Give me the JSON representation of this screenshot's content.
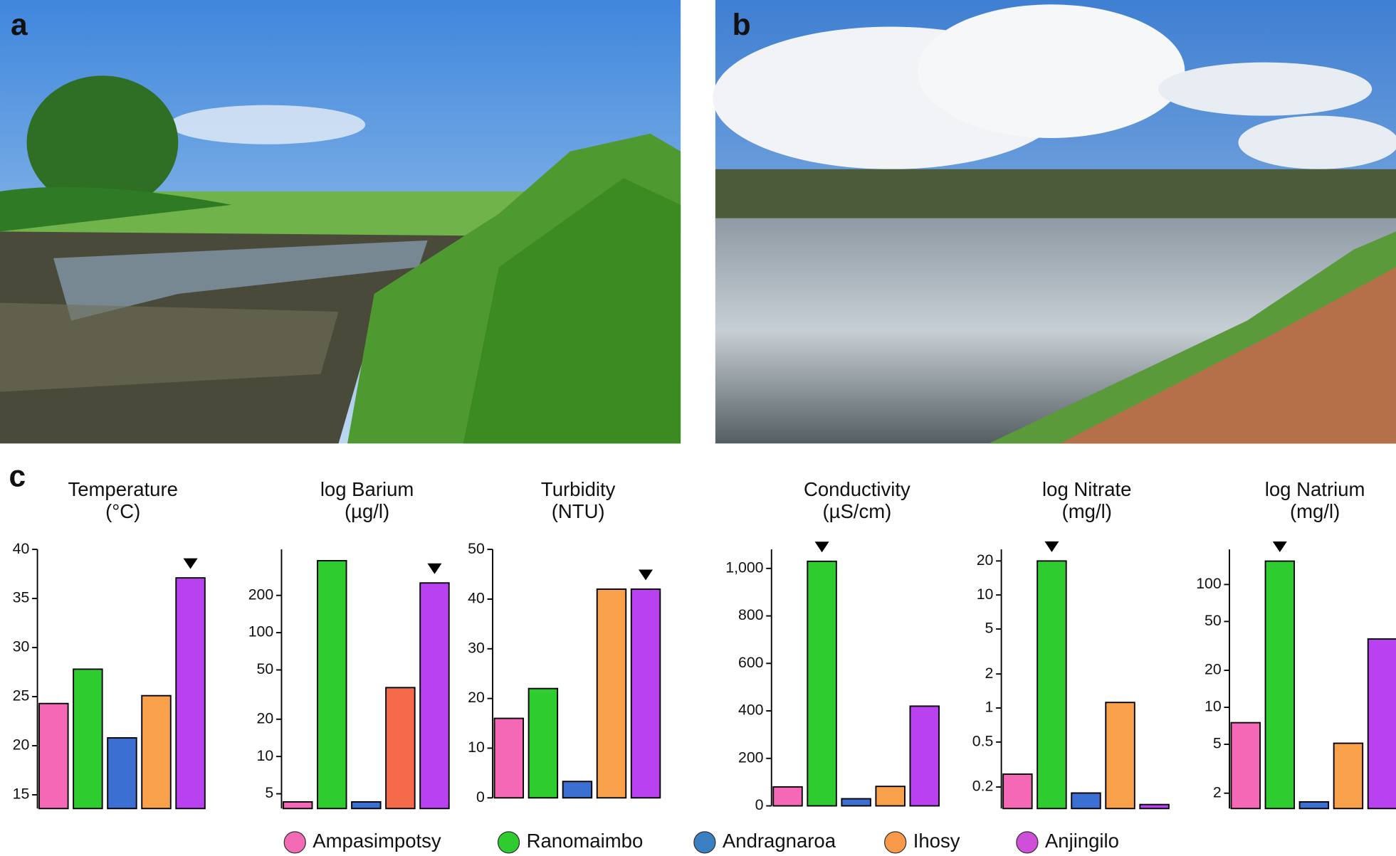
{
  "panel_labels": {
    "a": "a",
    "b": "b",
    "c": "c"
  },
  "legend": {
    "names": [
      "Ampasimpotsy",
      "Ranomaimbo",
      "Andragnaroa",
      "Ihosy",
      "Anjingilo"
    ],
    "colors": [
      "#f46ab4",
      "#2ecc2e",
      "#3a7fc2",
      "#f99a4a",
      "#cf4fd8"
    ]
  },
  "chart_data": [
    {
      "type": "bar",
      "title": "Temperature",
      "unit": "(°C)",
      "log": false,
      "values": [
        24.3,
        27.8,
        20.8,
        25.1,
        37.1
      ],
      "colors": [
        "#f468b6",
        "#2ecc2e",
        "#3b6fd1",
        "#f9a04a",
        "#b941f0"
      ],
      "highlight": 4,
      "ylim": [
        13.6,
        40
      ],
      "yticks": [
        15,
        20,
        25,
        30,
        35,
        40
      ]
    },
    {
      "type": "bar",
      "title": "log Barium",
      "unit": "(µg/l)",
      "log": true,
      "values": [
        4.3,
        381,
        4.3,
        36,
        252
      ],
      "colors": [
        "#f468b6",
        "#2ecc2e",
        "#3b6fd1",
        "#f56a4a",
        "#b941f0"
      ],
      "highlight": 4,
      "ylim": [
        3.8,
        470
      ],
      "yticks": [
        5,
        10,
        20,
        50,
        100,
        200
      ]
    },
    {
      "type": "bar",
      "title": "Turbidity",
      "unit": "(NTU)",
      "log": false,
      "values": [
        16,
        22,
        3.3,
        42,
        42
      ],
      "colors": [
        "#f468b6",
        "#2ecc2e",
        "#3b6fd1",
        "#f9a04a",
        "#b941f0"
      ],
      "highlight": 4,
      "ylim": [
        0,
        50
      ],
      "yticks": [
        0,
        10,
        20,
        30,
        40,
        50
      ]
    },
    {
      "type": "bar",
      "title": "Conductivity",
      "unit": "(µS/cm)",
      "log": false,
      "values": [
        80,
        1030,
        30,
        82,
        420
      ],
      "colors": [
        "#f468b6",
        "#2ecc2e",
        "#3b6fd1",
        "#f9a04a",
        "#b941f0"
      ],
      "highlight": 1,
      "ylim": [
        0,
        1080
      ],
      "yticks": [
        0,
        200,
        400,
        600,
        800,
        {
          "value": 1000,
          "label": "1,000"
        }
      ]
    },
    {
      "type": "bar",
      "title": "log Nitrate",
      "unit": "(mg/l)",
      "log": true,
      "values": [
        0.26,
        20,
        0.177,
        1.12,
        0.14
      ],
      "colors": [
        "#f468b6",
        "#2ecc2e",
        "#3b6fd1",
        "#f9a04a",
        "#b941f0"
      ],
      "highlight": 1,
      "ylim": [
        0.129,
        25.3
      ],
      "yticks": [
        0.2,
        0.5,
        1,
        2,
        5,
        10,
        20
      ]
    },
    {
      "type": "bar",
      "title": "log Natrium",
      "unit": "(mg/l)",
      "log": true,
      "values": [
        7.5,
        155,
        1.7,
        5.1,
        36
      ],
      "colors": [
        "#f468b6",
        "#2ecc2e",
        "#3b6fd1",
        "#f9a04a",
        "#b941f0"
      ],
      "highlight": 1,
      "ylim": [
        1.5,
        193
      ],
      "yticks": [
        2,
        5,
        10,
        20,
        50,
        100
      ]
    }
  ]
}
